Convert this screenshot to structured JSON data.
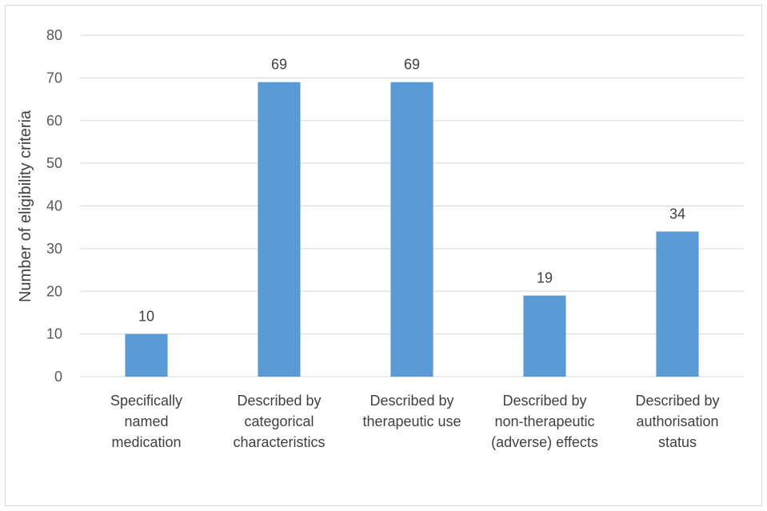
{
  "chart_data": {
    "type": "bar",
    "title": "",
    "xlabel": "",
    "ylabel": "Number of eligibility criteria",
    "ylim": [
      0,
      80
    ],
    "yticks": [
      0,
      10,
      20,
      30,
      40,
      50,
      60,
      70,
      80
    ],
    "grid": true,
    "legend": "none",
    "bar_color": "#5b9bd5",
    "categories": [
      [
        "Specifically",
        "named",
        "medication"
      ],
      [
        "Described by",
        "categorical",
        "characteristics"
      ],
      [
        "Described by",
        "therapeutic use"
      ],
      [
        "Described by",
        "non-therapeutic",
        "(adverse) effects"
      ],
      [
        "Described by",
        "authorisation",
        "status"
      ]
    ],
    "values": [
      10,
      69,
      69,
      19,
      34
    ],
    "data_labels": [
      "10",
      "69",
      "69",
      "19",
      "34"
    ]
  }
}
